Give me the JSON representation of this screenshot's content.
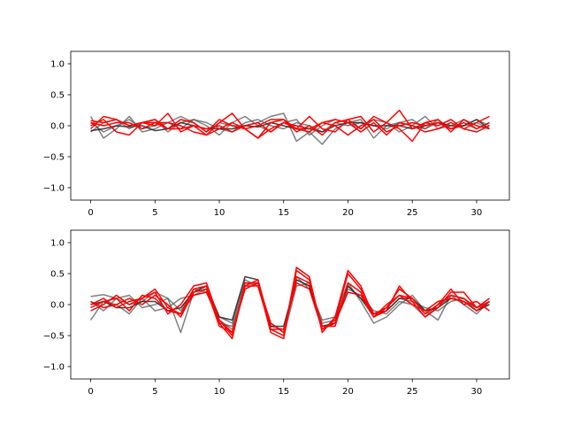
{
  "chart_data": [
    {
      "type": "line",
      "title": "",
      "xlabel": "",
      "ylabel": "",
      "xlim": [
        -1.55,
        32.55
      ],
      "ylim": [
        -1.2,
        1.2
      ],
      "xticks": [
        0,
        5,
        10,
        15,
        20,
        25,
        30
      ],
      "yticks": [
        -1.0,
        -0.5,
        0.0,
        0.5,
        1.0
      ],
      "xtick_labels": [
        "0",
        "5",
        "10",
        "15",
        "20",
        "25",
        "30"
      ],
      "ytick_labels": [
        "−1.0",
        "−0.5",
        "0.0",
        "0.5",
        "1.0"
      ],
      "grid": false,
      "x": [
        0,
        1,
        2,
        3,
        4,
        5,
        6,
        7,
        8,
        9,
        10,
        11,
        12,
        13,
        14,
        15,
        16,
        17,
        18,
        19,
        20,
        21,
        22,
        23,
        24,
        25,
        26,
        27,
        28,
        29,
        30,
        31
      ],
      "series": [
        {
          "color": "#555555",
          "alpha": 0.75,
          "values": [
            0.15,
            -0.2,
            -0.05,
            0.15,
            -0.1,
            -0.05,
            0.05,
            0.15,
            0.05,
            -0.1,
            0.05,
            0.0,
            0.0,
            0.05,
            0.15,
            0.2,
            -0.25,
            -0.1,
            -0.3,
            -0.05,
            0.05,
            0.1,
            -0.2,
            0.0,
            0.05,
            0.1,
            -0.05,
            0.1,
            -0.05,
            0.0,
            0.1,
            0.0
          ]
        },
        {
          "color": "#555555",
          "alpha": 0.75,
          "values": [
            -0.1,
            0.05,
            0.1,
            -0.05,
            0.05,
            0.1,
            -0.1,
            0.05,
            0.1,
            0.0,
            -0.15,
            0.05,
            0.15,
            0.0,
            -0.1,
            0.05,
            0.1,
            -0.15,
            0.0,
            0.1,
            0.05,
            -0.05,
            0.1,
            0.05,
            -0.1,
            0.0,
            0.15,
            -0.05,
            0.0,
            0.1,
            -0.05,
            0.05
          ]
        },
        {
          "color": "#555555",
          "alpha": 0.75,
          "values": [
            0.05,
            -0.1,
            0.0,
            0.1,
            -0.05,
            0.0,
            0.05,
            -0.05,
            0.1,
            0.05,
            -0.05,
            -0.1,
            0.05,
            0.1,
            0.0,
            -0.05,
            0.05,
            0.0,
            -0.1,
            0.05,
            0.0,
            0.05,
            0.0,
            -0.05,
            0.05,
            0.0,
            -0.05,
            0.05,
            -0.05,
            0.0,
            0.05,
            -0.05
          ]
        },
        {
          "color": "#222222",
          "alpha": 0.85,
          "values": [
            -0.08,
            -0.05,
            0.0,
            -0.02,
            0.0,
            -0.08,
            -0.05,
            0.05,
            0.0,
            -0.05,
            -0.05,
            -0.05,
            0.0,
            -0.02,
            0.05,
            0.0,
            -0.05,
            -0.05,
            -0.1,
            0.0,
            0.05,
            0.05,
            0.0,
            0.0,
            0.0,
            -0.05,
            0.0,
            0.05,
            0.0,
            0.0,
            0.1,
            -0.05
          ]
        },
        {
          "color": "#ff0000",
          "alpha": 1.0,
          "values": [
            0.08,
            0.05,
            0.1,
            0.0,
            0.05,
            0.05,
            0.05,
            0.0,
            -0.1,
            -0.15,
            0.05,
            0.2,
            -0.05,
            -0.2,
            0.05,
            0.1,
            -0.05,
            0.15,
            -0.05,
            -0.1,
            0.1,
            0.15,
            -0.1,
            0.05,
            0.25,
            -0.05,
            0.05,
            0.1,
            -0.1,
            0.1,
            0.0,
            -0.05
          ]
        },
        {
          "color": "#ff0000",
          "alpha": 1.0,
          "values": [
            -0.05,
            0.15,
            0.1,
            0.0,
            0.05,
            0.1,
            -0.05,
            0.1,
            0.05,
            -0.1,
            0.1,
            0.0,
            -0.05,
            0.0,
            0.1,
            0.1,
            -0.1,
            0.0,
            -0.15,
            0.05,
            0.1,
            -0.05,
            0.15,
            0.05,
            -0.05,
            -0.25,
            0.05,
            0.0,
            0.1,
            -0.05,
            0.05,
            0.15
          ]
        },
        {
          "color": "#ff0000",
          "alpha": 1.0,
          "values": [
            0.0,
            0.1,
            -0.1,
            -0.15,
            0.05,
            0.0,
            0.2,
            -0.1,
            0.0,
            -0.05,
            0.0,
            -0.1,
            0.0,
            0.05,
            -0.1,
            0.05,
            -0.05,
            -0.1,
            0.05,
            0.0,
            -0.15,
            0.0,
            0.1,
            -0.1,
            0.0,
            0.05,
            0.0,
            0.05,
            -0.05,
            0.05,
            -0.05,
            0.05
          ]
        },
        {
          "color": "#ff0000",
          "alpha": 1.0,
          "values": [
            0.05,
            0.0,
            0.05,
            0.05,
            -0.05,
            0.05,
            -0.05,
            -0.05,
            0.0,
            -0.15,
            -0.05,
            0.05,
            -0.05,
            -0.2,
            -0.05,
            0.05,
            0.0,
            -0.05,
            0.05,
            0.1,
            0.05,
            -0.1,
            0.05,
            -0.15,
            0.05,
            0.0,
            -0.1,
            -0.05,
            0.05,
            -0.05,
            -0.1,
            0.0
          ]
        }
      ]
    },
    {
      "type": "line",
      "title": "",
      "xlabel": "",
      "ylabel": "",
      "xlim": [
        -1.55,
        32.55
      ],
      "ylim": [
        -1.2,
        1.2
      ],
      "xticks": [
        0,
        5,
        10,
        15,
        20,
        25,
        30
      ],
      "yticks": [
        -1.0,
        -0.5,
        0.0,
        0.5,
        1.0
      ],
      "xtick_labels": [
        "0",
        "5",
        "10",
        "15",
        "20",
        "25",
        "30"
      ],
      "ytick_labels": [
        "−1.0",
        "−0.5",
        "0.0",
        "0.5",
        "1.0"
      ],
      "grid": false,
      "x": [
        0,
        1,
        2,
        3,
        4,
        5,
        6,
        7,
        8,
        9,
        10,
        11,
        12,
        13,
        14,
        15,
        16,
        17,
        18,
        19,
        20,
        21,
        22,
        23,
        24,
        25,
        26,
        27,
        28,
        29,
        30,
        31
      ],
      "series": [
        {
          "color": "#555555",
          "alpha": 0.75,
          "values": [
            0.13,
            0.16,
            0.1,
            0.0,
            0.05,
            0.2,
            0.1,
            -0.45,
            0.2,
            0.3,
            -0.2,
            -0.3,
            0.4,
            0.3,
            -0.3,
            -0.45,
            0.45,
            0.25,
            -0.25,
            -0.2,
            0.35,
            0.05,
            -0.3,
            -0.2,
            0.0,
            0.15,
            -0.1,
            -0.25,
            0.15,
            0.0,
            -0.15,
            0.05
          ]
        },
        {
          "color": "#555555",
          "alpha": 0.75,
          "values": [
            -0.25,
            0.05,
            0.0,
            -0.15,
            0.1,
            -0.1,
            -0.05,
            0.1,
            0.15,
            0.25,
            -0.25,
            -0.4,
            0.25,
            0.35,
            -0.4,
            -0.5,
            0.3,
            0.35,
            -0.35,
            -0.3,
            0.25,
            0.15,
            -0.1,
            -0.15,
            0.05,
            0.0,
            -0.2,
            0.0,
            0.1,
            0.05,
            -0.05,
            0.0
          ]
        },
        {
          "color": "#555555",
          "alpha": 0.75,
          "values": [
            0.05,
            -0.1,
            0.1,
            0.15,
            -0.05,
            0.0,
            0.1,
            -0.1,
            0.25,
            0.2,
            -0.3,
            -0.35,
            0.35,
            0.3,
            -0.35,
            -0.4,
            0.4,
            0.3,
            -0.3,
            -0.25,
            0.3,
            0.1,
            -0.2,
            -0.1,
            0.1,
            0.05,
            -0.05,
            -0.1,
            0.05,
            0.1,
            -0.1,
            0.05
          ]
        },
        {
          "color": "#222222",
          "alpha": 0.85,
          "values": [
            0.0,
            0.05,
            -0.05,
            -0.05,
            0.05,
            0.05,
            -0.1,
            -0.05,
            0.2,
            0.3,
            -0.2,
            -0.25,
            0.45,
            0.4,
            -0.35,
            -0.35,
            0.4,
            0.3,
            -0.35,
            -0.3,
            0.3,
            0.1,
            -0.15,
            -0.1,
            0.1,
            0.1,
            -0.1,
            -0.05,
            0.1,
            0.05,
            -0.1,
            0.0
          ]
        },
        {
          "color": "#ff0000",
          "alpha": 1.0,
          "values": [
            0.0,
            0.1,
            -0.05,
            0.05,
            0.1,
            0.2,
            -0.15,
            0.0,
            0.3,
            0.35,
            -0.25,
            -0.5,
            0.3,
            0.4,
            -0.4,
            -0.5,
            0.6,
            0.45,
            -0.45,
            -0.2,
            0.55,
            0.3,
            -0.2,
            -0.1,
            0.3,
            0.05,
            -0.2,
            -0.05,
            0.2,
            0.2,
            -0.05,
            0.1
          ]
        },
        {
          "color": "#ff0000",
          "alpha": 1.0,
          "values": [
            -0.1,
            0.0,
            0.15,
            0.0,
            0.1,
            0.25,
            -0.05,
            -0.15,
            0.25,
            0.3,
            -0.3,
            -0.55,
            0.35,
            0.35,
            -0.45,
            -0.55,
            0.55,
            0.4,
            -0.4,
            -0.25,
            0.5,
            0.25,
            -0.15,
            -0.05,
            0.25,
            0.1,
            -0.15,
            0.0,
            0.25,
            0.0,
            0.05,
            -0.1
          ]
        },
        {
          "color": "#ff0000",
          "alpha": 1.0,
          "values": [
            0.05,
            -0.05,
            0.0,
            0.1,
            0.0,
            0.15,
            0.0,
            -0.2,
            0.2,
            0.25,
            -0.35,
            -0.45,
            0.25,
            0.35,
            -0.3,
            -0.45,
            0.45,
            0.35,
            -0.35,
            -0.35,
            0.35,
            0.2,
            -0.2,
            0.0,
            0.15,
            0.0,
            -0.1,
            0.05,
            0.1,
            0.05,
            -0.1,
            0.05
          ]
        },
        {
          "color": "#ff0000",
          "alpha": 1.0,
          "values": [
            -0.05,
            0.05,
            0.1,
            -0.1,
            0.15,
            0.1,
            -0.1,
            -0.15,
            0.15,
            0.2,
            -0.25,
            -0.45,
            0.3,
            0.3,
            -0.4,
            -0.4,
            0.35,
            0.25,
            -0.4,
            -0.3,
            0.2,
            0.15,
            -0.2,
            -0.05,
            0.15,
            0.1,
            -0.15,
            0.0,
            0.15,
            0.1,
            -0.05,
            0.05
          ]
        }
      ]
    }
  ]
}
